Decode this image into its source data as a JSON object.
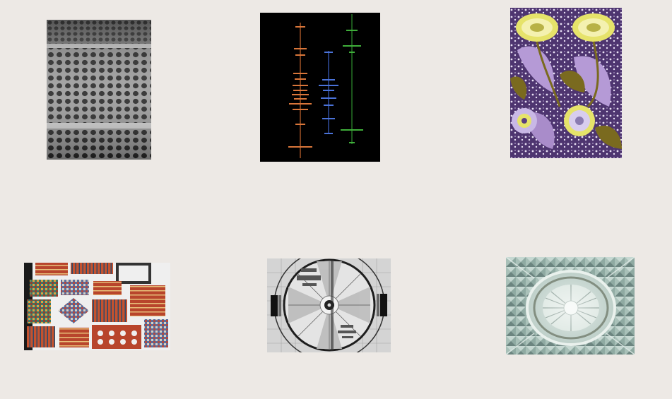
{
  "gallery": {
    "background": "#ede9e5",
    "thumbnails": [
      {
        "name": "perforated-metal-thumbnail",
        "icon": "perforated-metal-image",
        "colors": [
          "#8a8a8a",
          "#2a2a2a"
        ]
      },
      {
        "name": "spectral-lines-thumbnail",
        "icon": "spectral-lines-image",
        "colors": [
          "#000000",
          "#d9763a",
          "#4a72d8",
          "#3fae3a"
        ]
      },
      {
        "name": "floral-pattern-thumbnail",
        "icon": "floral-pattern-image",
        "colors": [
          "#5b3f7e",
          "#c9b8e6",
          "#e6e36a",
          "#7a6a1f"
        ]
      },
      {
        "name": "woven-textiles-thumbnail",
        "icon": "woven-textiles-image",
        "colors": [
          "#f2f2f2",
          "#b8452c",
          "#3a7a6a",
          "#e0a040"
        ]
      },
      {
        "name": "test-pattern-thumbnail",
        "icon": "test-pattern-image",
        "colors": [
          "#dadada",
          "#222222"
        ]
      },
      {
        "name": "cut-glass-thumbnail",
        "icon": "cut-glass-image",
        "colors": [
          "#9fb8b0",
          "#d8e4de",
          "#6c8580"
        ]
      }
    ]
  }
}
